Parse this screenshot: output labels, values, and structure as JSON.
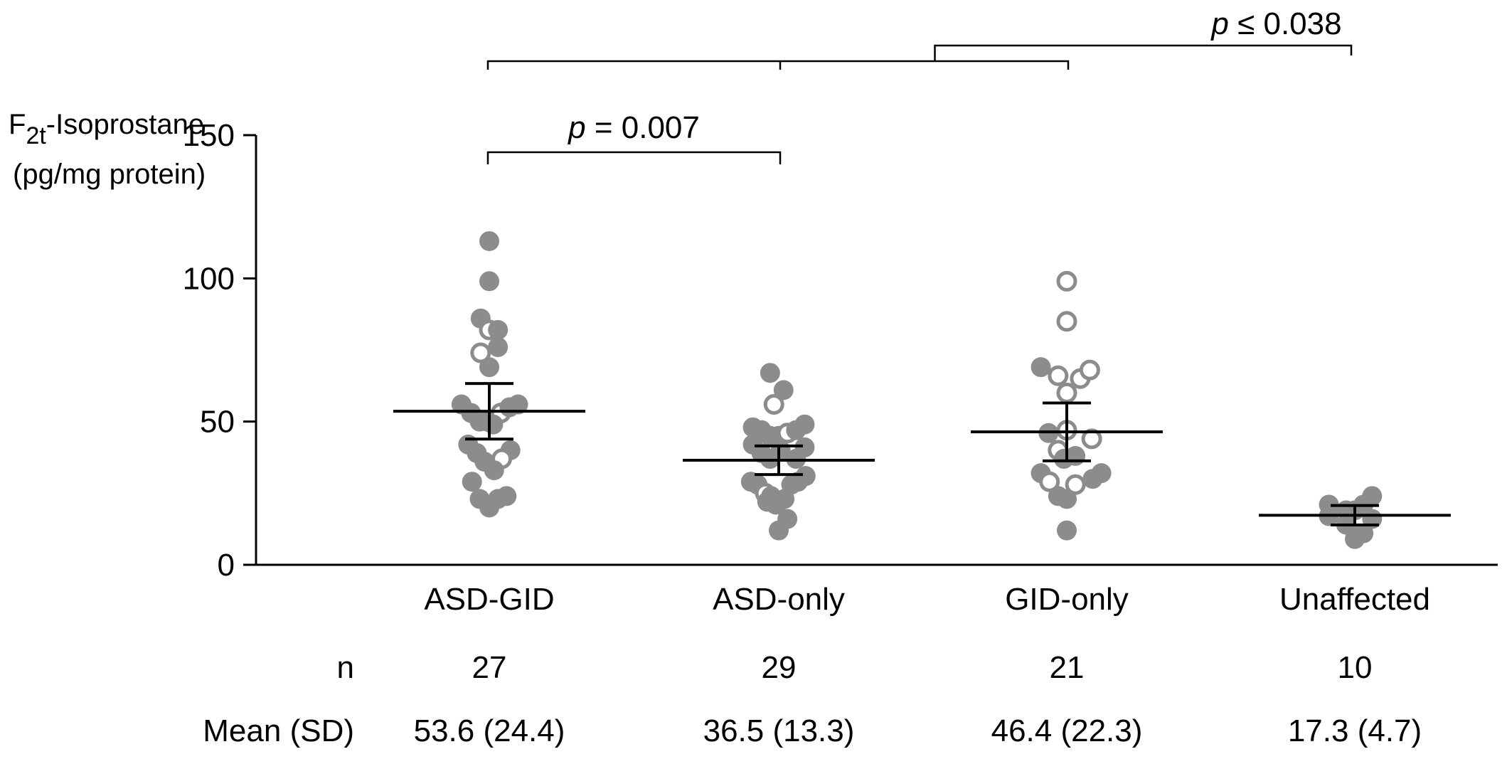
{
  "chart_data": {
    "type": "scatter",
    "ylabel": {
      "base": "F",
      "subscript": "2t",
      "rest": "-Isoprostane",
      "units": "(pg/mg protein)"
    },
    "ylim": [
      0,
      150
    ],
    "yticks": [
      0,
      50,
      100,
      150
    ],
    "grid": false,
    "categories": [
      "ASD-GID",
      "ASD-only",
      "GID-only",
      "Unaffected"
    ],
    "groups": [
      {
        "name": "ASD-GID",
        "n": "27",
        "mean_sd": "53.6 (24.4)",
        "mean": 53.6,
        "err_low": 43.9,
        "err_high": 63.3,
        "points": [
          {
            "dx": 0.0,
            "y": 113,
            "open": false
          },
          {
            "dx": 0.0,
            "y": 99,
            "open": false
          },
          {
            "dx": -0.09,
            "y": 86,
            "open": false
          },
          {
            "dx": 0.0,
            "y": 82,
            "open": true
          },
          {
            "dx": 0.09,
            "y": 82,
            "open": false
          },
          {
            "dx": 0.09,
            "y": 76,
            "open": false
          },
          {
            "dx": -0.09,
            "y": 74,
            "open": true
          },
          {
            "dx": 0.0,
            "y": 69,
            "open": false
          },
          {
            "dx": -0.29,
            "y": 56,
            "open": false
          },
          {
            "dx": -0.19,
            "y": 53,
            "open": false
          },
          {
            "dx": 0.12,
            "y": 53,
            "open": true
          },
          {
            "dx": 0.21,
            "y": 55,
            "open": false
          },
          {
            "dx": 0.3,
            "y": 56,
            "open": false
          },
          {
            "dx": -0.1,
            "y": 50,
            "open": false
          },
          {
            "dx": -0.02,
            "y": 50,
            "open": false
          },
          {
            "dx": 0.04,
            "y": 49,
            "open": false
          },
          {
            "dx": -0.22,
            "y": 42,
            "open": false
          },
          {
            "dx": -0.13,
            "y": 39,
            "open": false
          },
          {
            "dx": 0.22,
            "y": 40,
            "open": false
          },
          {
            "dx": 0.13,
            "y": 37,
            "open": true
          },
          {
            "dx": -0.05,
            "y": 36,
            "open": false
          },
          {
            "dx": 0.05,
            "y": 33,
            "open": false
          },
          {
            "dx": -0.18,
            "y": 29,
            "open": false
          },
          {
            "dx": -0.1,
            "y": 23,
            "open": false
          },
          {
            "dx": 0.09,
            "y": 23,
            "open": false
          },
          {
            "dx": 0.18,
            "y": 24,
            "open": false
          },
          {
            "dx": 0.0,
            "y": 20,
            "open": false
          }
        ]
      },
      {
        "name": "ASD-only",
        "n": "29",
        "mean_sd": "36.5 (13.3)",
        "mean": 36.5,
        "err_low": 31.5,
        "err_high": 41.5,
        "points": [
          {
            "dx": -0.09,
            "y": 67,
            "open": false
          },
          {
            "dx": 0.05,
            "y": 61,
            "open": false
          },
          {
            "dx": -0.05,
            "y": 56,
            "open": true
          },
          {
            "dx": -0.27,
            "y": 48,
            "open": false
          },
          {
            "dx": -0.18,
            "y": 47,
            "open": false
          },
          {
            "dx": -0.09,
            "y": 45,
            "open": false
          },
          {
            "dx": 0.0,
            "y": 45,
            "open": false
          },
          {
            "dx": 0.09,
            "y": 46,
            "open": true
          },
          {
            "dx": 0.18,
            "y": 47,
            "open": false
          },
          {
            "dx": 0.27,
            "y": 49,
            "open": false
          },
          {
            "dx": -0.27,
            "y": 42,
            "open": false
          },
          {
            "dx": -0.18,
            "y": 39,
            "open": false
          },
          {
            "dx": 0.02,
            "y": 40,
            "open": false
          },
          {
            "dx": 0.27,
            "y": 41,
            "open": false
          },
          {
            "dx": -0.09,
            "y": 37,
            "open": false
          },
          {
            "dx": 0.18,
            "y": 37,
            "open": false
          },
          {
            "dx": -0.29,
            "y": 29,
            "open": false
          },
          {
            "dx": -0.22,
            "y": 28,
            "open": false
          },
          {
            "dx": -0.14,
            "y": 25,
            "open": true
          },
          {
            "dx": -0.08,
            "y": 24,
            "open": false
          },
          {
            "dx": 0.0,
            "y": 22,
            "open": false
          },
          {
            "dx": 0.06,
            "y": 23,
            "open": false
          },
          {
            "dx": 0.13,
            "y": 28,
            "open": false
          },
          {
            "dx": 0.2,
            "y": 29,
            "open": false
          },
          {
            "dx": 0.28,
            "y": 31,
            "open": false
          },
          {
            "dx": -0.03,
            "y": 21,
            "open": false
          },
          {
            "dx": -0.12,
            "y": 22,
            "open": false
          },
          {
            "dx": 0.09,
            "y": 16,
            "open": false
          },
          {
            "dx": 0.0,
            "y": 12,
            "open": false
          }
        ]
      },
      {
        "name": "GID-only",
        "n": "21",
        "mean_sd": "46.4 (22.3)",
        "mean": 46.4,
        "err_low": 36.3,
        "err_high": 56.5,
        "points": [
          {
            "dx": 0.0,
            "y": 99,
            "open": true
          },
          {
            "dx": 0.0,
            "y": 85,
            "open": true
          },
          {
            "dx": -0.27,
            "y": 69,
            "open": false
          },
          {
            "dx": -0.09,
            "y": 66,
            "open": true
          },
          {
            "dx": 0.14,
            "y": 65,
            "open": true
          },
          {
            "dx": 0.24,
            "y": 68,
            "open": true
          },
          {
            "dx": 0.0,
            "y": 60,
            "open": true
          },
          {
            "dx": -0.19,
            "y": 46,
            "open": false
          },
          {
            "dx": 0.0,
            "y": 47,
            "open": true
          },
          {
            "dx": 0.26,
            "y": 44,
            "open": true
          },
          {
            "dx": -0.09,
            "y": 40,
            "open": true
          },
          {
            "dx": -0.03,
            "y": 37,
            "open": false
          },
          {
            "dx": 0.09,
            "y": 38,
            "open": false
          },
          {
            "dx": -0.27,
            "y": 32,
            "open": false
          },
          {
            "dx": -0.18,
            "y": 29,
            "open": true
          },
          {
            "dx": 0.09,
            "y": 28,
            "open": true
          },
          {
            "dx": 0.27,
            "y": 30,
            "open": false
          },
          {
            "dx": 0.36,
            "y": 32,
            "open": false
          },
          {
            "dx": -0.09,
            "y": 24,
            "open": false
          },
          {
            "dx": 0.0,
            "y": 23,
            "open": false
          },
          {
            "dx": 0.0,
            "y": 12,
            "open": false
          }
        ]
      },
      {
        "name": "Unaffected",
        "n": "10",
        "mean_sd": "17.3 (4.7)",
        "mean": 17.3,
        "err_low": 13.9,
        "err_high": 20.7,
        "points": [
          {
            "dx": -0.27,
            "y": 21,
            "open": false
          },
          {
            "dx": -0.27,
            "y": 17,
            "open": false
          },
          {
            "dx": -0.09,
            "y": 19,
            "open": false
          },
          {
            "dx": 0.0,
            "y": 19,
            "open": false
          },
          {
            "dx": 0.09,
            "y": 21,
            "open": false
          },
          {
            "dx": 0.18,
            "y": 24,
            "open": false
          },
          {
            "dx": -0.09,
            "y": 14,
            "open": false
          },
          {
            "dx": 0.18,
            "y": 16,
            "open": false
          },
          {
            "dx": 0.0,
            "y": 9,
            "open": false
          },
          {
            "dx": 0.09,
            "y": 11,
            "open": false
          }
        ]
      }
    ],
    "stats_rows": [
      {
        "label": "n",
        "key": "n"
      },
      {
        "label": "Mean (SD)",
        "key": "mean_sd"
      }
    ],
    "annotations": [
      {
        "p_prefix": "p",
        "p_text": " = 0.007",
        "from": 0,
        "to": 1
      },
      {
        "p_prefix": "p",
        "p_text": " ≤ 0.038",
        "from": [
          0,
          1,
          2
        ],
        "to": 3
      }
    ],
    "colors": {
      "point": "#8c8c8c",
      "open_stroke": "#8c8c8c",
      "mean_line": "#000000",
      "axis": "#000000"
    }
  }
}
